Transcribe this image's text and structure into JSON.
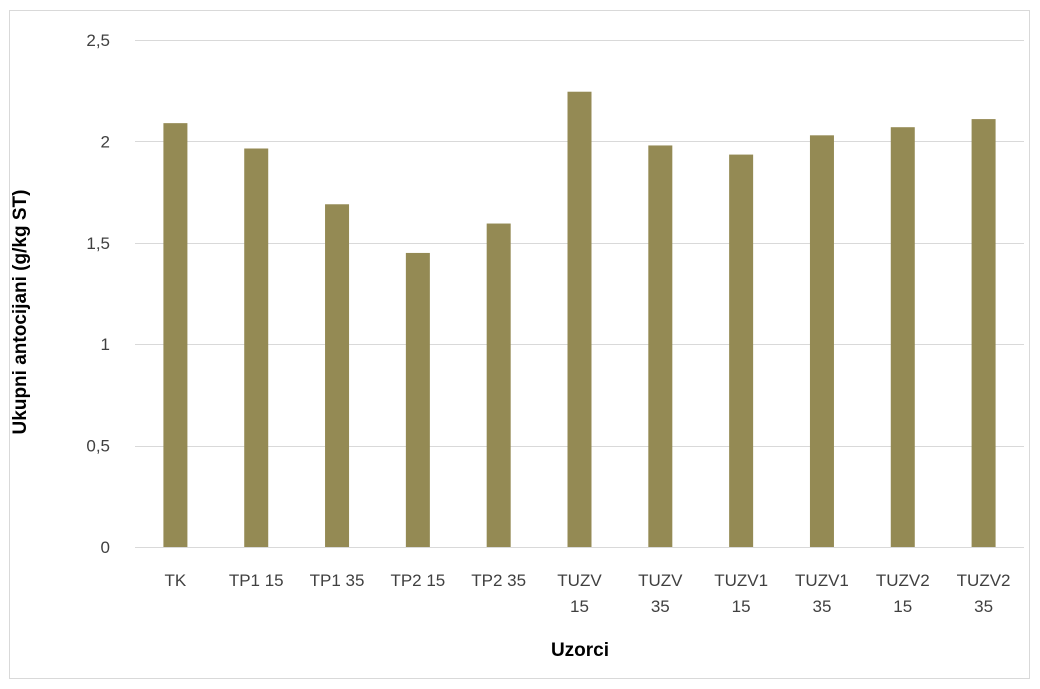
{
  "chart_data": {
    "type": "bar",
    "title": "",
    "xlabel": "Uzorci",
    "ylabel": "Ukupni antocijani (g/kg ST)",
    "categories": [
      [
        "TK"
      ],
      [
        "TP1 15"
      ],
      [
        "TP1 35"
      ],
      [
        "TP2 15"
      ],
      [
        "TP2 35"
      ],
      [
        "TUZV",
        "15"
      ],
      [
        "TUZV",
        "35"
      ],
      [
        "TUZV1",
        "15"
      ],
      [
        "TUZV1",
        "35"
      ],
      [
        "TUZV2",
        "15"
      ],
      [
        "TUZV2",
        "35"
      ]
    ],
    "values": [
      2.09,
      1.965,
      1.69,
      1.45,
      1.595,
      2.245,
      1.98,
      1.935,
      2.03,
      2.07,
      2.11
    ],
    "ylim": [
      0,
      2.5
    ],
    "yticks": [
      0,
      0.5,
      1,
      1.5,
      2,
      2.5
    ],
    "ytick_labels": [
      "0",
      "0,5",
      "1",
      "1,5",
      "2",
      "2,5"
    ],
    "grid": true,
    "legend": "none",
    "colors": {
      "bar": "#948A54",
      "grid": "#D9D9D9",
      "border": "#D9D9D9",
      "tick_text": "#404040"
    }
  }
}
